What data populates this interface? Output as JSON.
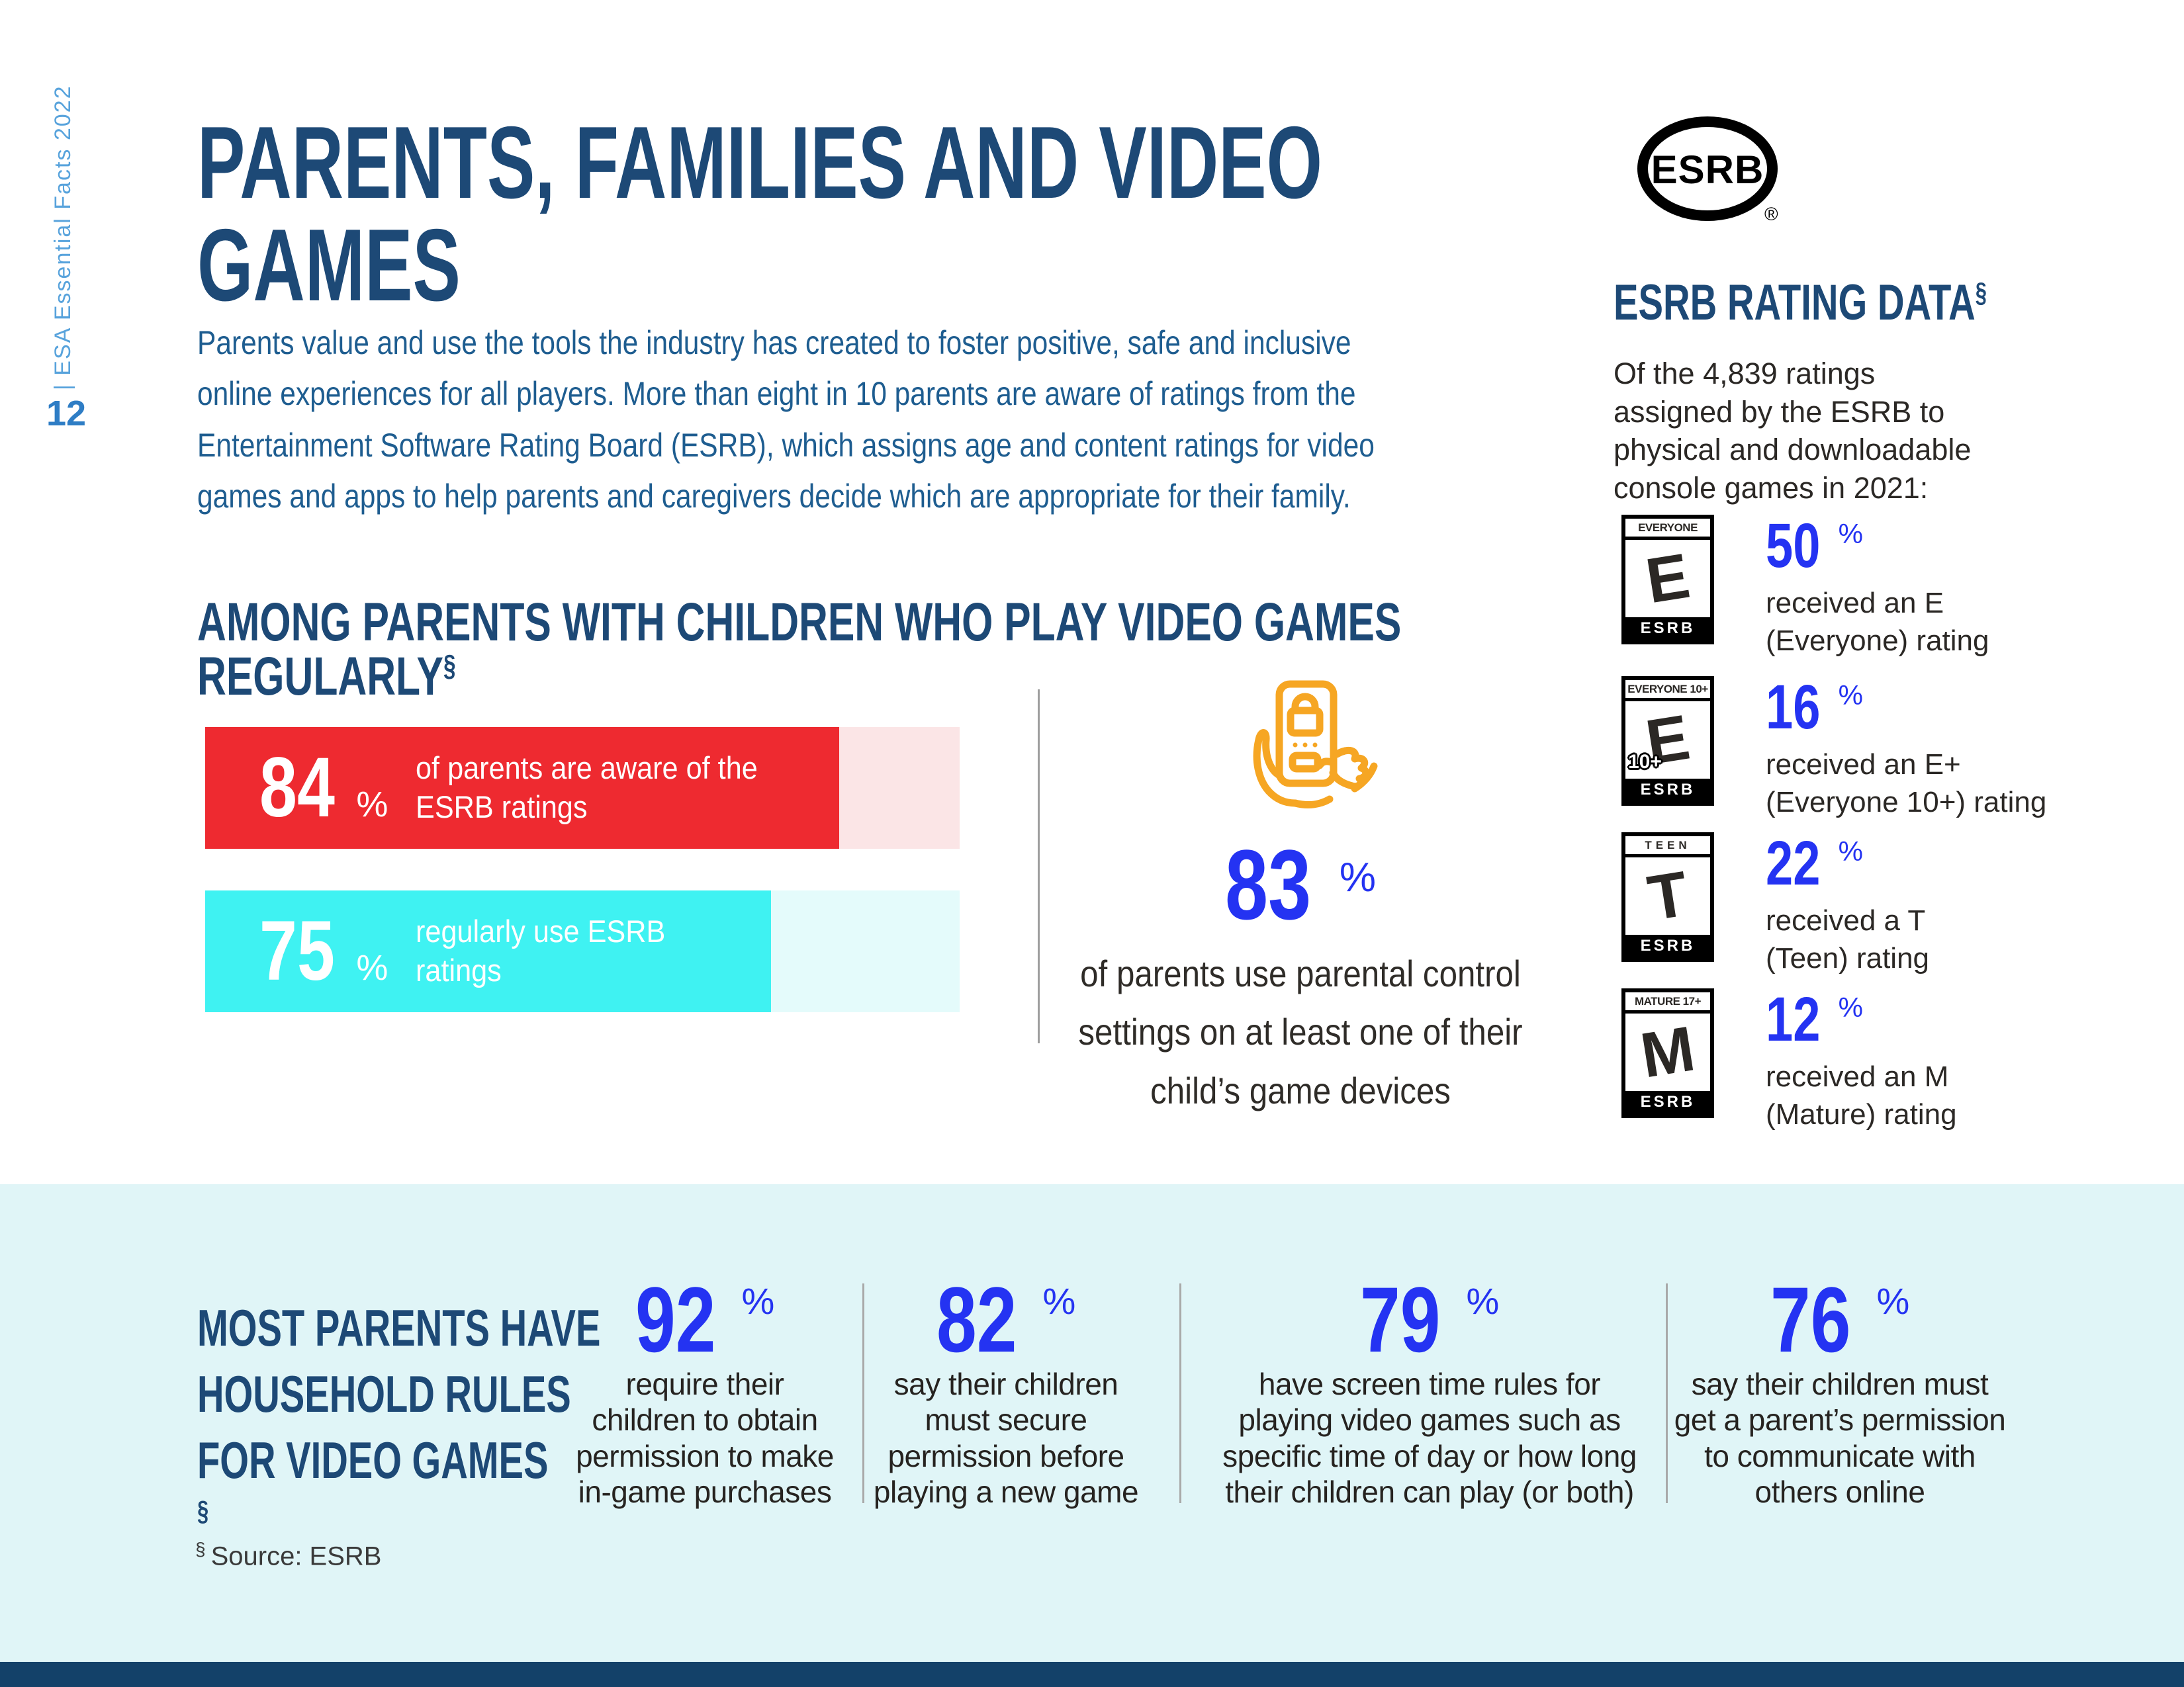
{
  "accent_colors": {
    "navy": "#1d4976",
    "number_blue": "#2433f2",
    "red": "#ee2a30",
    "pale_red": "#fbe5e6",
    "cyan": "#3ff2f2",
    "pale_cyan": "#e4fbfb",
    "orange": "#f6a623",
    "band_background": "#e0f5f7",
    "strip_navy": "#134169",
    "sidebar_blue": "#58a3dc"
  },
  "sidebar": {
    "vertical_label": "| ESA Essential Facts 2022",
    "page_number": "12"
  },
  "header": {
    "title": "PARENTS, FAMILIES AND VIDEO GAMES",
    "intro": "Parents value and use the tools the industry has created to foster positive, safe and inclusive\nonline experiences for all players. More than eight in 10 parents are aware of ratings from the\nEntertainment Software Rating Board (ESRB), which assigns age and content ratings for video\ngames and apps to help parents and caregivers decide which are appropriate for their family."
  },
  "survey": {
    "heading": "AMONG PARENTS WITH CHILDREN WHO PLAY VIDEO GAMES REGULARLY",
    "heading_note": "§",
    "bars": [
      {
        "percent": 84,
        "value": "84",
        "unit": "%",
        "label": "of parents are aware of the\nESRB ratings"
      },
      {
        "percent": 75,
        "value": "75",
        "unit": "%",
        "label": "regularly use ESRB ratings"
      }
    ],
    "parental_controls": {
      "icon": "hand-holding-phone-with-lock",
      "value": "83",
      "unit": "%",
      "text": "of parents use parental control\nsettings on at least one of their\nchild’s game devices"
    }
  },
  "esrb_panel": {
    "logo_text": "ESRB",
    "logo_reg": "®",
    "heading": "ESRB RATING DATA",
    "heading_note": "§",
    "description": "Of the 4,839 ratings\nassigned by the ESRB to\nphysical and downloadable\nconsole games in 2021:",
    "ratings": [
      {
        "badge_top": "EVERYONE",
        "badge_letter": "E",
        "badge_overlay": "",
        "badge_bottom": "ESRB",
        "value": "50",
        "unit": "%",
        "text": "received an E\n(Everyone) rating"
      },
      {
        "badge_top": "EVERYONE 10+",
        "badge_letter": "E",
        "badge_overlay": "10+",
        "badge_bottom": "ESRB",
        "value": "16",
        "unit": "%",
        "text": "received an E+\n(Everyone 10+) rating"
      },
      {
        "badge_top": "TEEN",
        "badge_letter": "T",
        "badge_overlay": "",
        "badge_bottom": "ESRB",
        "value": "22",
        "unit": "%",
        "text": "received a T\n(Teen) rating"
      },
      {
        "badge_top": "MATURE 17+",
        "badge_letter": "M",
        "badge_overlay": "",
        "badge_bottom": "ESRB",
        "value": "12",
        "unit": "%",
        "text": "received an M\n(Mature) rating"
      }
    ]
  },
  "rules": {
    "heading_line1": "MOST PARENTS HAVE",
    "heading_line2": "HOUSEHOLD RULES",
    "heading_line3": "FOR VIDEO GAMES",
    "heading_note": "§",
    "stats": [
      {
        "value": "92",
        "unit": "%",
        "text": "require their\nchildren to obtain\npermission to make\nin-game purchases"
      },
      {
        "value": "82",
        "unit": "%",
        "text": "say their children\nmust secure\npermission before\nplaying a new game"
      },
      {
        "value": "79",
        "unit": "%",
        "text": "have screen time rules for\nplaying video games such as\nspecific time of day or how long\ntheir children can play (or both)"
      },
      {
        "value": "76",
        "unit": "%",
        "text": "say their children must\nget a parent’s permission\nto communicate with\nothers online"
      }
    ]
  },
  "footnote": {
    "symbol": "§",
    "text": "Source: ESRB"
  },
  "chart_data": [
    {
      "type": "bar",
      "title": "Among parents with children who play video games regularly",
      "categories": [
        "aware of the ESRB ratings",
        "regularly use ESRB ratings"
      ],
      "values": [
        84,
        75
      ],
      "unit": "%",
      "xlim": [
        0,
        100
      ],
      "colors": [
        "#ee2a30",
        "#3ff2f2"
      ]
    },
    {
      "type": "bar",
      "title": "ESRB rating data: of the 4,839 ratings assigned by the ESRB to physical and downloadable console games in 2021",
      "categories": [
        "E (Everyone)",
        "E+ (Everyone 10+)",
        "T (Teen)",
        "M (Mature)"
      ],
      "values": [
        50,
        16,
        22,
        12
      ],
      "unit": "%"
    },
    {
      "type": "bar",
      "title": "Most parents have household rules for video games",
      "categories": [
        "permission for in-game purchases",
        "permission before new game",
        "screen time rules",
        "permission to communicate online"
      ],
      "values": [
        92,
        82,
        79,
        76
      ],
      "unit": "%"
    }
  ]
}
